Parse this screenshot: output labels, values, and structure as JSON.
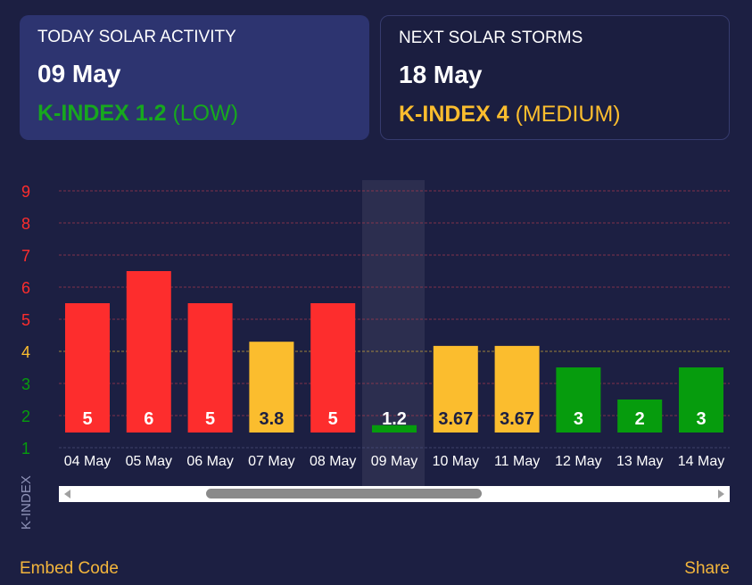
{
  "today_card": {
    "label": "TODAY SOLAR ACTIVITY",
    "date": "09 May",
    "kindex_value": "K-INDEX 1.2",
    "kindex_level": "(LOW)",
    "color": "#17a81e"
  },
  "next_card": {
    "label": "NEXT SOLAR STORMS",
    "date": "18 May",
    "kindex_value": "K-INDEX 4",
    "kindex_level": "(MEDIUM)",
    "color": "#fbbd2e"
  },
  "colors": {
    "high": "#fd2d2d",
    "medium": "#fbbd2e",
    "low": "#069c0d",
    "background": "#1c1f42",
    "link": "#f4b63c"
  },
  "chart_data": {
    "type": "bar",
    "ylabel": "K-INDEX",
    "yticks": [
      1,
      2,
      3,
      4,
      5,
      6,
      7,
      8,
      9
    ],
    "ytick_colors": [
      "low",
      "low",
      "low",
      "medium",
      "high",
      "high",
      "high",
      "high",
      "high"
    ],
    "ylim": [
      1,
      9
    ],
    "grid": true,
    "categories": [
      "04 May",
      "05 May",
      "06 May",
      "07 May",
      "08 May",
      "09 May",
      "10 May",
      "11 May",
      "12 May",
      "13 May",
      "14 May"
    ],
    "values": [
      5,
      6,
      5,
      3.8,
      5,
      1.2,
      3.67,
      3.67,
      3,
      2,
      3
    ],
    "labels": [
      "5",
      "6",
      "5",
      "3.8",
      "5",
      "1.2",
      "3.67",
      "3.67",
      "3",
      "2",
      "3"
    ],
    "levels": [
      "high",
      "high",
      "high",
      "medium",
      "high",
      "low",
      "medium",
      "medium",
      "low",
      "low",
      "low"
    ],
    "highlighted": "09 May"
  },
  "footer": {
    "embed_label": "Embed Code",
    "share_label": "Share"
  }
}
